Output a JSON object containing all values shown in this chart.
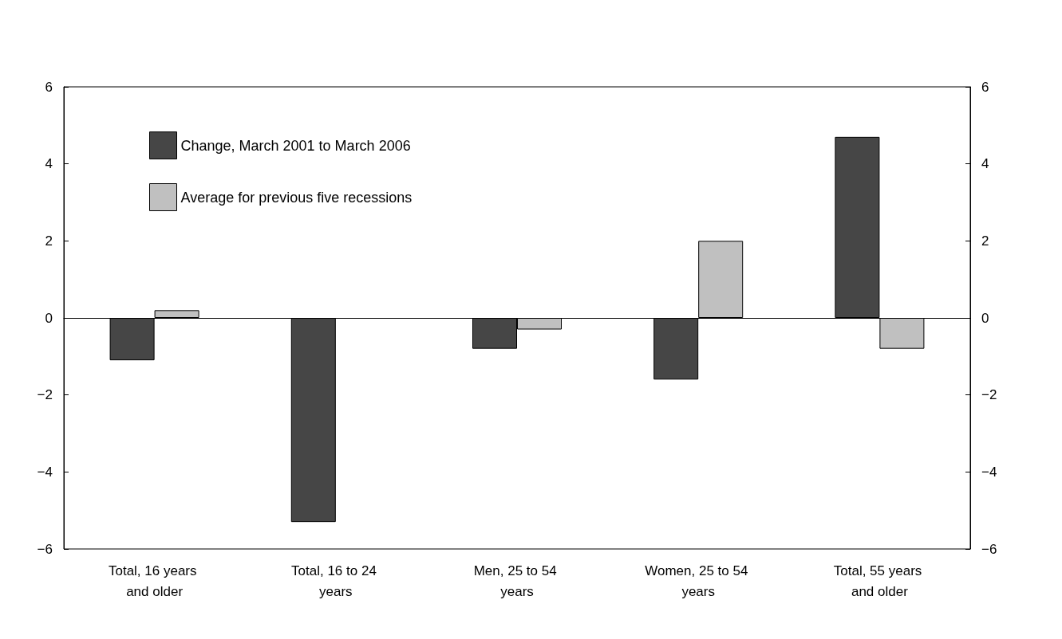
{
  "chart_data": {
    "type": "bar",
    "categories": [
      "Total, 16 years and older",
      "Total, 16 to 24 years",
      "Men, 25 to 54 years",
      "Women, 25 to 54 years",
      "Total, 55 years and older"
    ],
    "series": [
      {
        "name": "Change, March 2001 to March 2006",
        "color": "#464646",
        "values": [
          -1.1,
          -5.3,
          -0.8,
          -1.6,
          4.7
        ]
      },
      {
        "name": "Average for previous five recessions",
        "color": "#c0c0c0",
        "values": [
          0.2,
          null,
          -0.3,
          2.0,
          -0.8
        ]
      }
    ],
    "ylim": [
      -6,
      6
    ],
    "yticks": [
      {
        "value": -6,
        "label": "−6"
      },
      {
        "value": -4,
        "label": "−4"
      },
      {
        "value": -2,
        "label": "−2"
      },
      0,
      2,
      4,
      6
    ],
    "y2lim": [
      -6,
      6
    ],
    "y2ticks": [
      {
        "value": -6,
        "label": "−6"
      },
      {
        "value": -4,
        "label": "−4"
      },
      {
        "value": -2,
        "label": "−2"
      },
      0,
      2,
      4,
      6
    ],
    "legend": "top left"
  }
}
